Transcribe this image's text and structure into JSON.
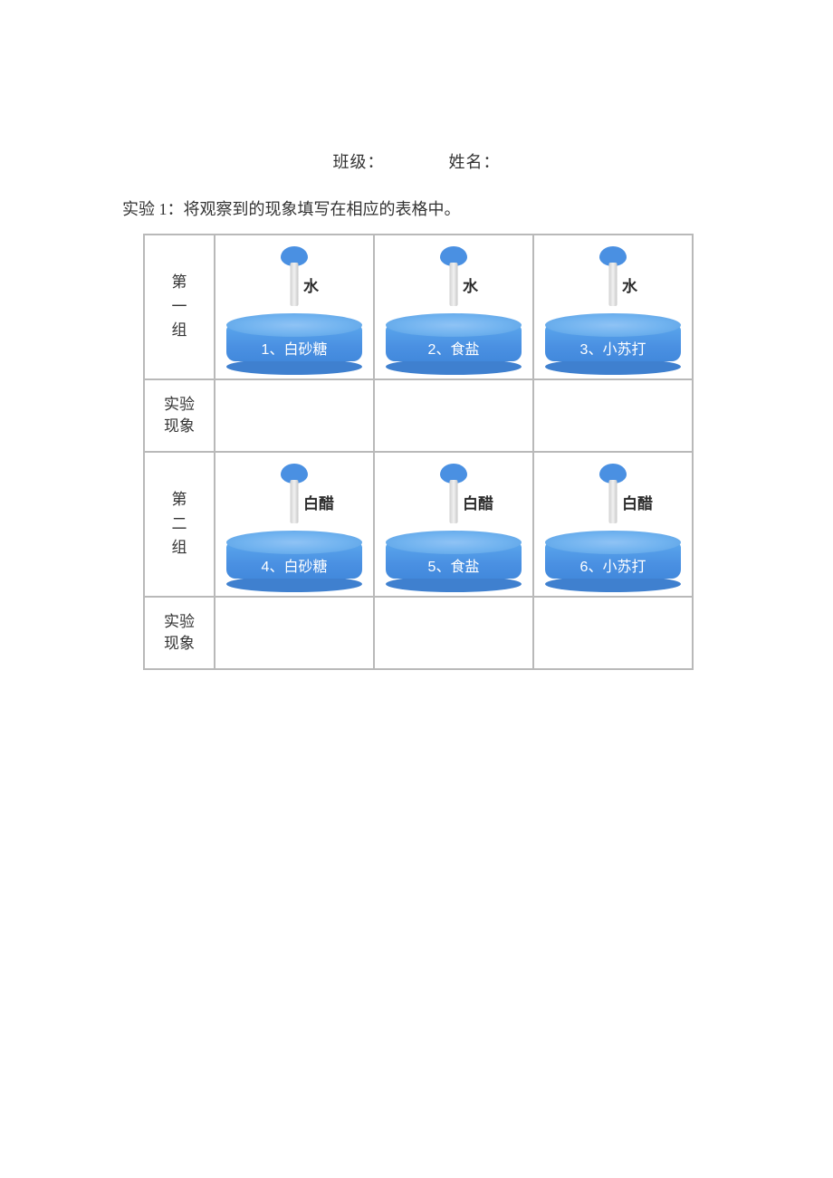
{
  "header": {
    "class_label": "班级：",
    "name_label": "姓名："
  },
  "instruction": "实验 1：将观察到的现象填写在相应的表格中。",
  "colors": {
    "border": "#b9b9b9",
    "dish_top": "#6fb2ef",
    "dish_body": "#4a90e2",
    "dish_bottom": "#3f80cf",
    "bulb": "#4a90e2",
    "text": "#333333",
    "dish_text": "#ffffff",
    "background": "#ffffff"
  },
  "groups": [
    {
      "label_chars": [
        "第",
        "一",
        "组"
      ],
      "cells": [
        {
          "dropper": "水",
          "dish": "1、白砂糖"
        },
        {
          "dropper": "水",
          "dish": "2、食盐"
        },
        {
          "dropper": "水",
          "dish": "3、小苏打"
        }
      ]
    },
    {
      "label_chars": [
        "第",
        "二",
        "组"
      ],
      "cells": [
        {
          "dropper": "白醋",
          "dish": "4、白砂糖"
        },
        {
          "dropper": "白醋",
          "dish": "5、食盐"
        },
        {
          "dropper": "白醋",
          "dish": "6、小苏打"
        }
      ]
    }
  ],
  "observation_label_line1": "实验",
  "observation_label_line2": "现象"
}
